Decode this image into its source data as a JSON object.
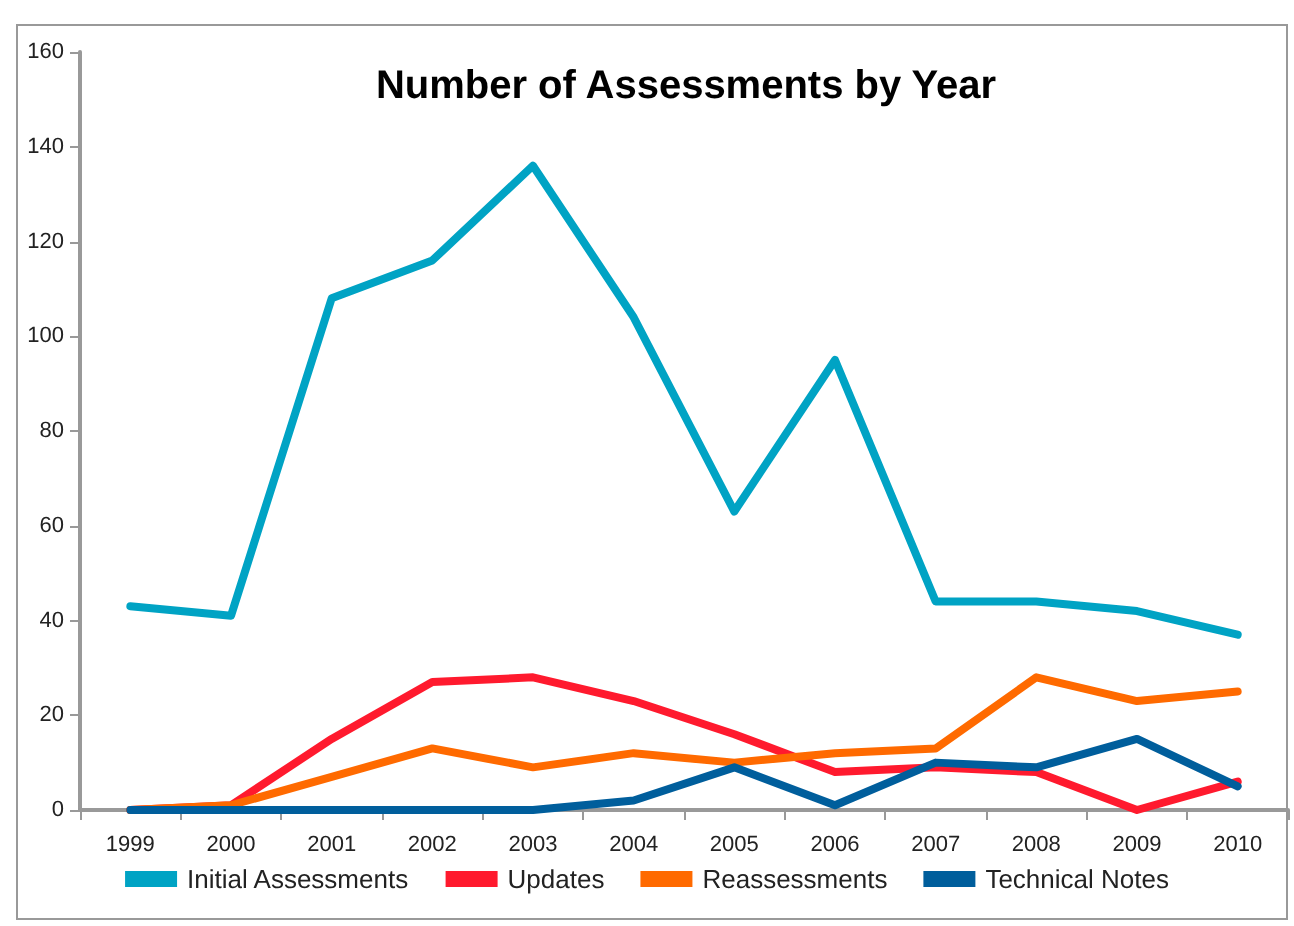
{
  "chart_data": {
    "type": "line",
    "title": "Number of Assessments by Year",
    "categories": [
      "1999",
      "2000",
      "2001",
      "2002",
      "2003",
      "2004",
      "2005",
      "2006",
      "2007",
      "2008",
      "2009",
      "2010"
    ],
    "series": [
      {
        "name": "Initial Assessments",
        "color": "#00a3c4",
        "values": [
          43,
          41,
          108,
          116,
          136,
          104,
          63,
          95,
          44,
          44,
          42,
          37
        ]
      },
      {
        "name": "Updates",
        "color": "#ff1a2e",
        "values": [
          0,
          1,
          15,
          27,
          28,
          23,
          16,
          8,
          9,
          8,
          0,
          6
        ]
      },
      {
        "name": "Reassessments",
        "color": "#ff6a00",
        "values": [
          0,
          1,
          7,
          13,
          9,
          12,
          10,
          12,
          13,
          28,
          23,
          25
        ]
      },
      {
        "name": "Technical Notes",
        "color": "#005e9c",
        "values": [
          0,
          0,
          0,
          0,
          0,
          2,
          9,
          1,
          10,
          9,
          15,
          5
        ]
      }
    ],
    "ylim": [
      0,
      160
    ],
    "yticks": [
      0,
      20,
      40,
      60,
      80,
      100,
      120,
      140,
      160
    ],
    "grid": false,
    "legend": "bottom",
    "marker": "none",
    "line_style": "solid"
  }
}
